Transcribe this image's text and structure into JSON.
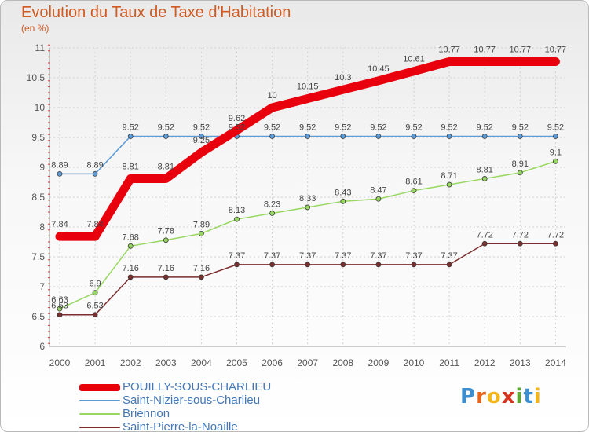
{
  "title": "Evolution du Taux de Taxe d'Habitation",
  "subtitle": "(en %)",
  "logo": {
    "letters": [
      "P",
      "r",
      "o",
      "x",
      "i",
      "t",
      "i"
    ],
    "colors": [
      "#3b8ed0",
      "#e8641b",
      "#f2b61d",
      "#d6331f",
      "#5aa832",
      "#3b8ed0",
      "#f2b61d"
    ]
  },
  "chart_data": {
    "type": "line",
    "title": "Evolution du Taux de Taxe d'Habitation",
    "xlabel": "",
    "ylabel": "(en %)",
    "x": [
      2000,
      2001,
      2002,
      2003,
      2004,
      2005,
      2006,
      2007,
      2008,
      2009,
      2010,
      2011,
      2012,
      2013,
      2014
    ],
    "ylim": [
      6,
      11
    ],
    "yticks": [
      6,
      6.5,
      7,
      7.5,
      8,
      8.5,
      9,
      9.5,
      10,
      10.5,
      11
    ],
    "grid": true,
    "legend_position": "bottom-left",
    "series": [
      {
        "name": "POUILLY-SOUS-CHARLIEU",
        "color": "#e8000d",
        "values": [
          7.84,
          7.84,
          8.81,
          8.81,
          9.25,
          9.62,
          10,
          10.15,
          10.3,
          10.45,
          10.61,
          10.77,
          10.77,
          10.77,
          10.77
        ],
        "labels": [
          "7.84",
          "7.84",
          "8.81",
          "8.81",
          "9.25",
          "9.62",
          "10",
          "10.15",
          "10.3",
          "10.45",
          "10.61",
          "10.77",
          "10.77",
          "10.77",
          "10.77"
        ]
      },
      {
        "name": "Saint-Nizier-sous-Charlieu",
        "color": "#5a9bd8",
        "values": [
          8.89,
          8.89,
          9.52,
          9.52,
          9.52,
          9.52,
          9.52,
          9.52,
          9.52,
          9.52,
          9.52,
          9.52,
          9.52,
          9.52,
          9.52
        ],
        "labels": [
          "8.89",
          "8.89",
          "9.52",
          "9.52",
          "9.52",
          "9.52",
          "9.52",
          "9.52",
          "9.52",
          "9.52",
          "9.52",
          "9.52",
          "9.52",
          "9.52",
          "9.52"
        ]
      },
      {
        "name": "Briennon",
        "color": "#98d862",
        "values": [
          6.63,
          6.9,
          7.68,
          7.78,
          7.89,
          8.13,
          8.23,
          8.33,
          8.43,
          8.47,
          8.61,
          8.71,
          8.81,
          8.91,
          9.1
        ],
        "labels": [
          "6.63",
          "6.9",
          "7.68",
          "7.78",
          "7.89",
          "8.13",
          "8.23",
          "8.33",
          "8.43",
          "8.47",
          "8.61",
          "8.71",
          "8.81",
          "8.91",
          "9.1"
        ]
      },
      {
        "name": "Saint-Pierre-la-Noaille",
        "color": "#7a2e2e",
        "values": [
          6.53,
          6.53,
          7.16,
          7.16,
          7.16,
          7.37,
          7.37,
          7.37,
          7.37,
          7.37,
          7.37,
          7.37,
          7.72,
          7.72,
          7.72
        ],
        "labels": [
          "6.53",
          "6.53",
          "7.16",
          "7.16",
          "7.16",
          "7.37",
          "7.37",
          "7.37",
          "7.37",
          "7.37",
          "7.37",
          "7.37",
          "7.72",
          "7.72",
          "7.72"
        ]
      }
    ]
  }
}
